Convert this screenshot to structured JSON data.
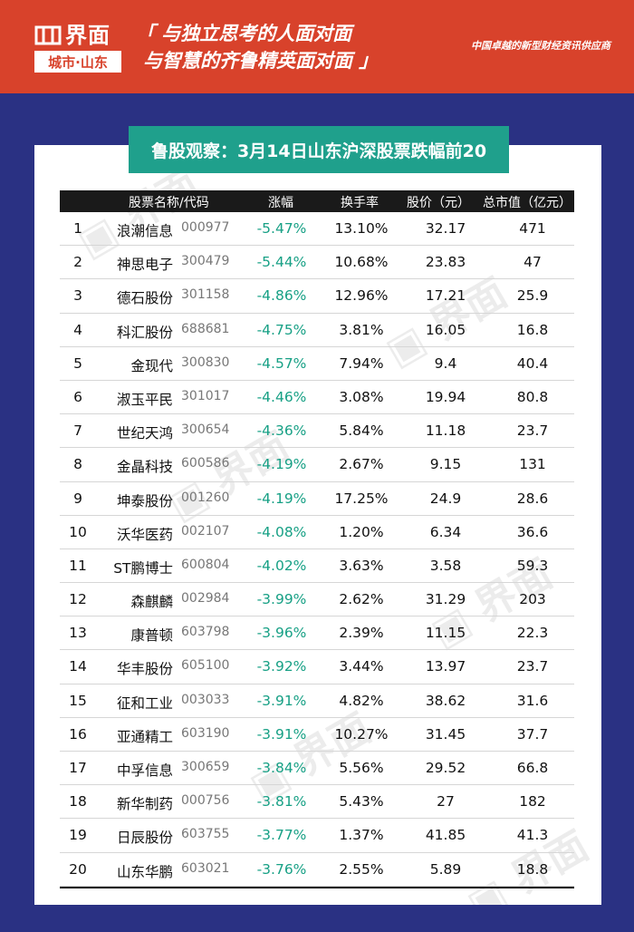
{
  "header": {
    "logo_title": "界面",
    "logo_sub": "城市·山东",
    "slogan_line1": "「 与独立思考的人面对面",
    "slogan_line2": "与智慧的齐鲁精英面对面 」",
    "tagline": "中国卓越的新型财经资讯供应商"
  },
  "report": {
    "title": "鲁股观察：3月14日山东沪深股票跌幅前20",
    "columns": {
      "name_code": "股票名称/代码",
      "change": "涨幅",
      "turnover": "换手率",
      "price": "股价（元）",
      "market_cap": "总市值（亿元）"
    },
    "rows": [
      {
        "rank": "1",
        "name": "浪潮信息",
        "code": "000977",
        "change": "-5.47%",
        "turnover": "13.10%",
        "price": "32.17",
        "cap": "471"
      },
      {
        "rank": "2",
        "name": "神思电子",
        "code": "300479",
        "change": "-5.44%",
        "turnover": "10.68%",
        "price": "23.83",
        "cap": "47"
      },
      {
        "rank": "3",
        "name": "德石股份",
        "code": "301158",
        "change": "-4.86%",
        "turnover": "12.96%",
        "price": "17.21",
        "cap": "25.9"
      },
      {
        "rank": "4",
        "name": "科汇股份",
        "code": "688681",
        "change": "-4.75%",
        "turnover": "3.81%",
        "price": "16.05",
        "cap": "16.8"
      },
      {
        "rank": "5",
        "name": "金现代",
        "code": "300830",
        "change": "-4.57%",
        "turnover": "7.94%",
        "price": "9.4",
        "cap": "40.4"
      },
      {
        "rank": "6",
        "name": "淑玉平民",
        "code": "301017",
        "change": "-4.46%",
        "turnover": "3.08%",
        "price": "19.94",
        "cap": "80.8"
      },
      {
        "rank": "7",
        "name": "世纪天鸿",
        "code": "300654",
        "change": "-4.36%",
        "turnover": "5.84%",
        "price": "11.18",
        "cap": "23.7"
      },
      {
        "rank": "8",
        "name": "金晶科技",
        "code": "600586",
        "change": "-4.19%",
        "turnover": "2.67%",
        "price": "9.15",
        "cap": "131"
      },
      {
        "rank": "9",
        "name": "坤泰股份",
        "code": "001260",
        "change": "-4.19%",
        "turnover": "17.25%",
        "price": "24.9",
        "cap": "28.6"
      },
      {
        "rank": "10",
        "name": "沃华医药",
        "code": "002107",
        "change": "-4.08%",
        "turnover": "1.20%",
        "price": "6.34",
        "cap": "36.6"
      },
      {
        "rank": "11",
        "name": "ST鹏博士",
        "code": "600804",
        "change": "-4.02%",
        "turnover": "3.63%",
        "price": "3.58",
        "cap": "59.3"
      },
      {
        "rank": "12",
        "name": "森麒麟",
        "code": "002984",
        "change": "-3.99%",
        "turnover": "2.62%",
        "price": "31.29",
        "cap": "203"
      },
      {
        "rank": "13",
        "name": "康普顿",
        "code": "603798",
        "change": "-3.96%",
        "turnover": "2.39%",
        "price": "11.15",
        "cap": "22.3"
      },
      {
        "rank": "14",
        "name": "华丰股份",
        "code": "605100",
        "change": "-3.92%",
        "turnover": "3.44%",
        "price": "13.97",
        "cap": "23.7"
      },
      {
        "rank": "15",
        "name": "征和工业",
        "code": "003033",
        "change": "-3.91%",
        "turnover": "4.82%",
        "price": "38.62",
        "cap": "31.6"
      },
      {
        "rank": "16",
        "name": "亚通精工",
        "code": "603190",
        "change": "-3.91%",
        "turnover": "10.27%",
        "price": "31.45",
        "cap": "37.7"
      },
      {
        "rank": "17",
        "name": "中孚信息",
        "code": "300659",
        "change": "-3.84%",
        "turnover": "5.56%",
        "price": "29.52",
        "cap": "66.8"
      },
      {
        "rank": "18",
        "name": "新华制药",
        "code": "000756",
        "change": "-3.81%",
        "turnover": "5.43%",
        "price": "27",
        "cap": "182"
      },
      {
        "rank": "19",
        "name": "日辰股份",
        "code": "603755",
        "change": "-3.77%",
        "turnover": "1.37%",
        "price": "41.85",
        "cap": "41.3"
      },
      {
        "rank": "20",
        "name": "山东华鹏",
        "code": "603021",
        "change": "-3.76%",
        "turnover": "2.55%",
        "price": "5.89",
        "cap": "18.8"
      }
    ]
  },
  "colors": {
    "header_red": "#d8422b",
    "background_navy": "#2a3183",
    "title_teal": "#1fa08c",
    "change_green": "#17a085"
  }
}
